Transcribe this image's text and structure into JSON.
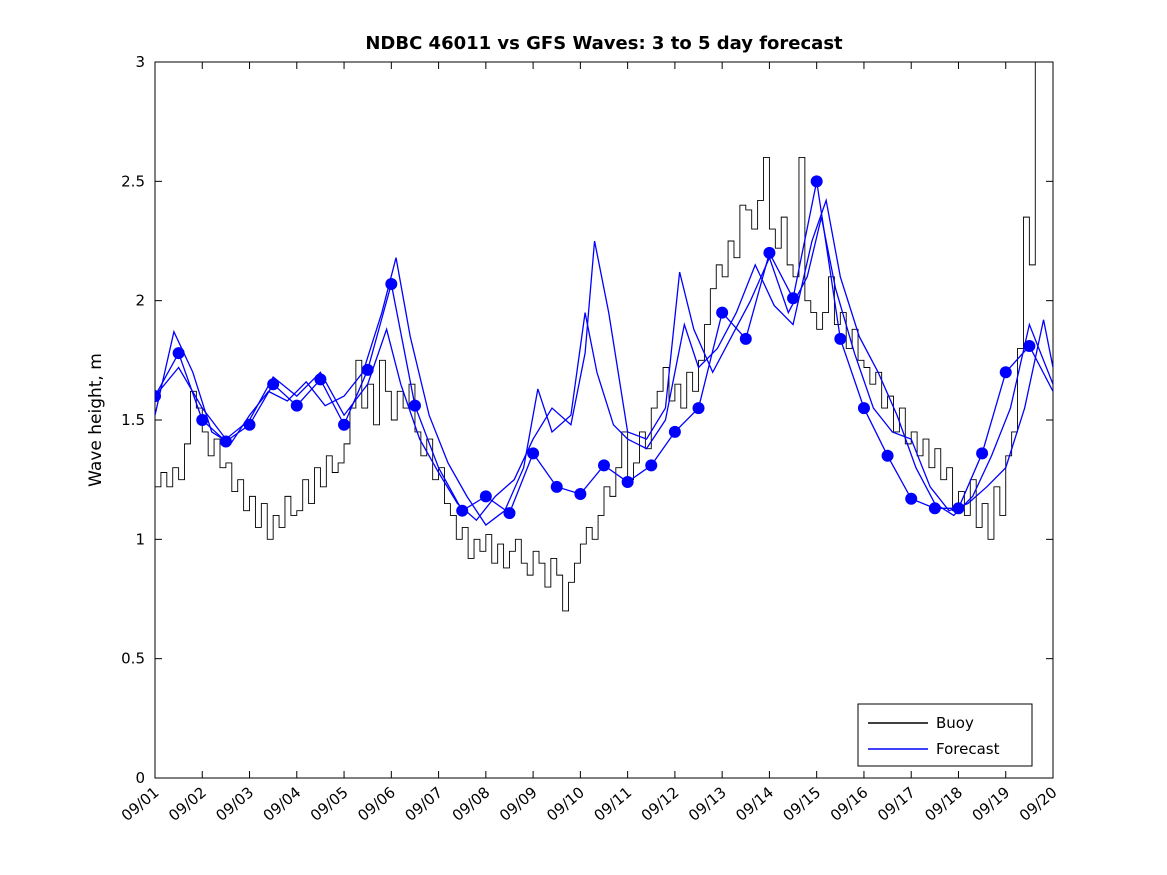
{
  "chart_data": {
    "type": "line",
    "title": "NDBC 46011 vs GFS Waves: 3 to 5 day forecast",
    "xlabel": "",
    "ylabel": "Wave height, m",
    "xlim": [
      0,
      19
    ],
    "ylim": [
      0,
      3
    ],
    "grid": false,
    "yticks": [
      0,
      0.5,
      1,
      1.5,
      2,
      2.5,
      3
    ],
    "ytick_labels": [
      "0",
      "0.5",
      "1",
      "1.5",
      "2",
      "2.5",
      "3"
    ],
    "xticks": [
      0,
      1,
      2,
      3,
      4,
      5,
      6,
      7,
      8,
      9,
      10,
      11,
      12,
      13,
      14,
      15,
      16,
      17,
      18,
      19
    ],
    "xtick_labels": [
      "09/01",
      "09/02",
      "09/03",
      "09/04",
      "09/05",
      "09/06",
      "09/07",
      "09/08",
      "09/09",
      "09/10",
      "09/11",
      "09/12",
      "09/13",
      "09/14",
      "09/15",
      "09/16",
      "09/17",
      "09/18",
      "09/19",
      "09/20"
    ],
    "colors": {
      "buoy": "#000000",
      "forecast": "#0000ff",
      "axes": "#000000",
      "background": "#ffffff"
    },
    "legend": {
      "position": "lower right",
      "entries": [
        {
          "label": "Buoy",
          "color": "#000000"
        },
        {
          "label": "Forecast",
          "color": "#0000ff"
        }
      ]
    },
    "series": [
      {
        "name": "Buoy",
        "color": "#000000",
        "style": "step",
        "x_start": 0,
        "x_step": 0.125,
        "y": [
          1.22,
          1.28,
          1.22,
          1.3,
          1.25,
          1.4,
          1.62,
          1.55,
          1.45,
          1.35,
          1.42,
          1.3,
          1.32,
          1.2,
          1.25,
          1.12,
          1.18,
          1.05,
          1.15,
          1.0,
          1.1,
          1.05,
          1.18,
          1.1,
          1.12,
          1.25,
          1.15,
          1.3,
          1.22,
          1.35,
          1.28,
          1.32,
          1.4,
          1.55,
          1.75,
          1.55,
          1.65,
          1.48,
          1.75,
          1.62,
          1.5,
          1.62,
          1.55,
          1.65,
          1.45,
          1.35,
          1.42,
          1.25,
          1.3,
          1.15,
          1.1,
          1.0,
          1.05,
          0.92,
          1.0,
          0.95,
          1.02,
          0.9,
          0.98,
          0.88,
          0.95,
          1.0,
          0.9,
          0.85,
          0.95,
          0.9,
          0.8,
          0.92,
          0.85,
          0.7,
          0.82,
          0.9,
          0.98,
          1.05,
          1.0,
          1.1,
          1.22,
          1.18,
          1.3,
          1.45,
          1.25,
          1.32,
          1.45,
          1.38,
          1.55,
          1.62,
          1.72,
          1.58,
          1.65,
          1.55,
          1.7,
          1.62,
          1.75,
          1.9,
          2.05,
          2.15,
          2.1,
          2.25,
          2.18,
          2.4,
          2.38,
          2.3,
          2.42,
          2.6,
          2.3,
          2.22,
          2.35,
          2.15,
          2.1,
          2.6,
          2.0,
          1.95,
          1.88,
          1.95,
          2.1,
          1.9,
          1.95,
          1.8,
          1.88,
          1.75,
          1.72,
          1.65,
          1.7,
          1.55,
          1.6,
          1.45,
          1.55,
          1.4,
          1.45,
          1.35,
          1.42,
          1.3,
          1.38,
          1.25,
          1.3,
          1.12,
          1.2,
          1.1,
          1.25,
          1.05,
          1.15,
          1.0,
          1.22,
          1.1,
          1.35,
          1.45,
          1.8,
          2.35,
          2.15,
          3.0
        ]
      },
      {
        "name": "Forecast run 1",
        "color": "#0000ff",
        "style": "line",
        "x": [
          0,
          0.5,
          1,
          1.5,
          2,
          2.5,
          3,
          3.5,
          4,
          4.5,
          5,
          5.5,
          6,
          6.5,
          7,
          7.5,
          8,
          8.5,
          9,
          9.5,
          10,
          10.5,
          11,
          11.5,
          12,
          12.5,
          13,
          13.5,
          14,
          14.5,
          15,
          15.5,
          16,
          16.5,
          17,
          17.5,
          18,
          18.5,
          19
        ],
        "y": [
          1.6,
          1.78,
          1.5,
          1.41,
          1.48,
          1.65,
          1.56,
          1.67,
          1.48,
          1.71,
          2.07,
          1.56,
          1.3,
          1.12,
          1.18,
          1.11,
          1.36,
          1.22,
          1.19,
          1.31,
          1.24,
          1.31,
          1.45,
          1.55,
          1.95,
          1.84,
          2.2,
          2.01,
          2.5,
          1.84,
          1.55,
          1.35,
          1.17,
          1.13,
          1.13,
          1.36,
          1.7,
          1.81,
          1.62
        ]
      },
      {
        "name": "Forecast run 2",
        "color": "#0000ff",
        "style": "line",
        "x": [
          0,
          0.4,
          0.8,
          1.2,
          1.6,
          2.0,
          2.4,
          2.8,
          3.2,
          3.6,
          4.0,
          4.4,
          4.8,
          5.1,
          5.4,
          5.8,
          6.2,
          6.6,
          7.0,
          7.4,
          7.8,
          8.1,
          8.4,
          8.8,
          9.1,
          9.35,
          9.7,
          10.0,
          10.4,
          10.8,
          11.2,
          11.5,
          11.9,
          12.3,
          12.7,
          13.1,
          13.5,
          13.9,
          14.2,
          14.5,
          14.9,
          15.3,
          15.7,
          16.1,
          16.5,
          16.9,
          17.3,
          17.7,
          18.1,
          18.5,
          18.9,
          19.0
        ],
        "y": [
          1.52,
          1.87,
          1.7,
          1.45,
          1.4,
          1.52,
          1.62,
          1.58,
          1.66,
          1.56,
          1.6,
          1.7,
          1.95,
          2.18,
          1.85,
          1.52,
          1.32,
          1.18,
          1.06,
          1.12,
          1.3,
          1.63,
          1.45,
          1.52,
          1.95,
          1.7,
          1.48,
          1.42,
          1.38,
          1.5,
          1.9,
          1.72,
          1.8,
          1.95,
          2.15,
          1.98,
          1.9,
          2.25,
          2.42,
          2.1,
          1.85,
          1.7,
          1.52,
          1.3,
          1.15,
          1.1,
          1.18,
          1.35,
          1.55,
          1.9,
          1.7,
          1.65
        ]
      },
      {
        "name": "Forecast run 3",
        "color": "#0000ff",
        "style": "line",
        "x": [
          0,
          0.5,
          1.0,
          1.5,
          2.0,
          2.5,
          3.0,
          3.5,
          4.0,
          4.5,
          4.9,
          5.2,
          5.6,
          6.0,
          6.4,
          6.8,
          7.2,
          7.6,
          8.0,
          8.4,
          8.8,
          9.1,
          9.3,
          9.6,
          10.0,
          10.4,
          10.8,
          11.1,
          11.4,
          11.8,
          12.2,
          12.6,
          13.0,
          13.4,
          13.8,
          14.1,
          14.4,
          14.8,
          15.2,
          15.6,
          16.0,
          16.4,
          16.8,
          17.2,
          17.6,
          18.0,
          18.4,
          18.8,
          19.0
        ],
        "y": [
          1.6,
          1.72,
          1.55,
          1.42,
          1.5,
          1.68,
          1.6,
          1.7,
          1.52,
          1.65,
          1.88,
          1.65,
          1.42,
          1.28,
          1.15,
          1.08,
          1.18,
          1.25,
          1.42,
          1.55,
          1.48,
          1.78,
          2.25,
          1.95,
          1.45,
          1.42,
          1.55,
          2.12,
          1.88,
          1.7,
          1.85,
          2.0,
          2.18,
          1.95,
          2.1,
          2.35,
          2.05,
          1.78,
          1.55,
          1.45,
          1.42,
          1.22,
          1.12,
          1.15,
          1.22,
          1.3,
          1.55,
          1.92,
          1.72
        ]
      }
    ],
    "markers": {
      "name": "Forecast 12-hourly points",
      "color": "#0000ff",
      "x": [
        0,
        0.5,
        1,
        1.5,
        2,
        2.5,
        3,
        3.5,
        4,
        4.5,
        5,
        5.5,
        6.5,
        7,
        7.5,
        8,
        8.5,
        9,
        9.5,
        10,
        10.5,
        11,
        11.5,
        12,
        12.5,
        13,
        13.5,
        14,
        14.5,
        15,
        15.5,
        16,
        16.5,
        17,
        17.5,
        18,
        18.5
      ],
      "y": [
        1.6,
        1.78,
        1.5,
        1.41,
        1.48,
        1.65,
        1.56,
        1.67,
        1.48,
        1.71,
        2.07,
        1.56,
        1.12,
        1.18,
        1.11,
        1.36,
        1.22,
        1.19,
        1.31,
        1.24,
        1.31,
        1.45,
        1.55,
        1.95,
        1.84,
        2.2,
        2.01,
        2.5,
        1.84,
        1.55,
        1.35,
        1.17,
        1.13,
        1.13,
        1.36,
        1.7,
        1.81
      ]
    }
  }
}
